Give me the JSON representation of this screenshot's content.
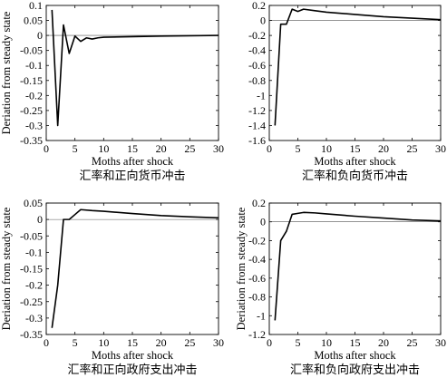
{
  "chart_data": [
    {
      "type": "line",
      "title": "",
      "xlabel": "Moths after shock",
      "ylabel": "Deriation from steady state",
      "caption": "汇率和正向货币冲击",
      "xlim": [
        0,
        30
      ],
      "ylim": [
        -0.35,
        0.1
      ],
      "xticks": [
        0,
        5,
        10,
        15,
        20,
        25,
        30
      ],
      "yticks": [
        0.1,
        0.05,
        0,
        -0.05,
        -0.1,
        -0.15,
        -0.2,
        -0.25,
        -0.3,
        -0.35
      ],
      "ytick_labels": [
        "0.1",
        "0.05",
        "0",
        "-0.05",
        "-0.1",
        "-0.15",
        "-0.2",
        "-0.25",
        "-0.3",
        "-0.35"
      ],
      "zero_line": true,
      "grid": false,
      "series": [
        {
          "x": [
            1,
            2,
            3,
            4,
            5,
            6,
            7,
            8,
            9,
            10,
            15,
            20,
            25,
            30
          ],
          "y": [
            0.085,
            -0.3,
            0.035,
            -0.06,
            -0.002,
            -0.02,
            -0.008,
            -0.012,
            -0.008,
            -0.006,
            -0.004,
            -0.002,
            -0.001,
            0
          ]
        }
      ]
    },
    {
      "type": "line",
      "title": "",
      "xlabel": "Moths after shock",
      "ylabel": "",
      "caption": "汇率和负向货币冲击",
      "xlim": [
        0,
        30
      ],
      "ylim": [
        -1.6,
        0.2
      ],
      "xticks": [
        0,
        5,
        10,
        15,
        20,
        25,
        30
      ],
      "yticks": [
        0.2,
        0,
        -0.2,
        -0.4,
        -0.6,
        -0.8,
        -1,
        -1.2,
        -1.4,
        -1.6
      ],
      "ytick_labels": [
        "0.2",
        "0",
        "-0.2",
        "-0.4",
        "-0.6",
        "-0.8",
        "-1",
        "-1.2",
        "-1.4",
        "-1.6"
      ],
      "zero_line": true,
      "grid": false,
      "series": [
        {
          "x": [
            1,
            2,
            3,
            4,
            5,
            6,
            8,
            10,
            15,
            20,
            25,
            30
          ],
          "y": [
            -1.4,
            -0.05,
            -0.05,
            0.15,
            0.12,
            0.15,
            0.13,
            0.11,
            0.08,
            0.05,
            0.03,
            0.01
          ]
        }
      ]
    },
    {
      "type": "line",
      "title": "",
      "xlabel": "Moths after shock",
      "ylabel": "Deriation from steady state",
      "caption": "汇率和正向政府支出冲击",
      "xlim": [
        0,
        30
      ],
      "ylim": [
        -0.35,
        0.05
      ],
      "xticks": [
        0,
        5,
        10,
        15,
        20,
        25,
        30
      ],
      "yticks": [
        0.05,
        0,
        -0.05,
        -0.1,
        -0.15,
        -0.2,
        -0.25,
        -0.3,
        -0.35
      ],
      "ytick_labels": [
        "0.05",
        "0",
        "-0.05",
        "-0.1",
        "-0.15",
        "-0.2",
        "-0.25",
        "-0.3",
        "-0.35"
      ],
      "zero_line": true,
      "grid": false,
      "series": [
        {
          "x": [
            1,
            2,
            3,
            4,
            5,
            6,
            8,
            10,
            15,
            20,
            25,
            30
          ],
          "y": [
            -0.33,
            -0.2,
            0,
            0,
            0.015,
            0.03,
            0.027,
            0.025,
            0.018,
            0.012,
            0.008,
            0.005
          ]
        }
      ]
    },
    {
      "type": "line",
      "title": "",
      "xlabel": "Moths after shock",
      "ylabel": "Deriation from steady state",
      "caption": "汇率和负向政府支出冲击",
      "xlim": [
        0,
        30
      ],
      "ylim": [
        -1.2,
        0.2
      ],
      "xticks": [
        0,
        5,
        10,
        15,
        20,
        25,
        30
      ],
      "yticks": [
        0.2,
        0,
        -0.2,
        -0.4,
        -0.6,
        -0.8,
        -1,
        -1.2
      ],
      "ytick_labels": [
        "0.2",
        "0",
        "-0.2",
        "-0.4",
        "-0.6",
        "-0.8",
        "-1",
        "-1.2"
      ],
      "zero_line": true,
      "grid": false,
      "series": [
        {
          "x": [
            1,
            2,
            3,
            4,
            5,
            6,
            8,
            10,
            15,
            20,
            25,
            30
          ],
          "y": [
            -1.05,
            -0.2,
            -0.1,
            0.08,
            0.09,
            0.1,
            0.095,
            0.085,
            0.06,
            0.04,
            0.02,
            0.01
          ]
        }
      ]
    }
  ]
}
